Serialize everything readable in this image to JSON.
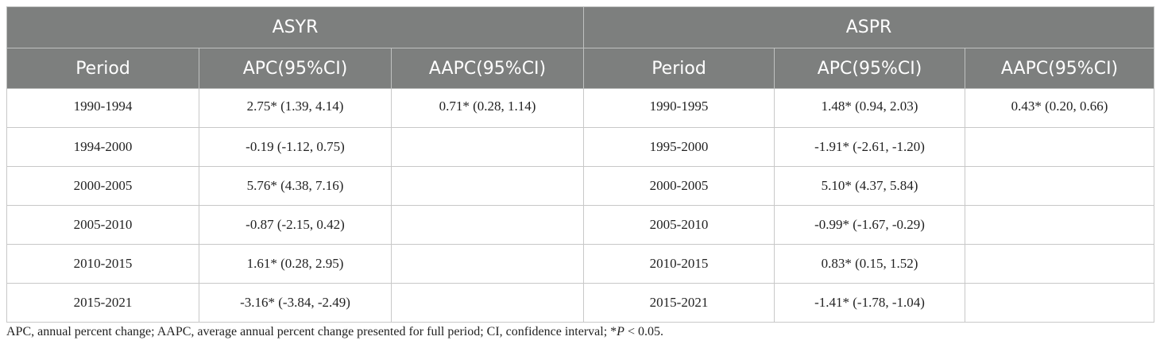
{
  "headers": {
    "group_left": "ASYR",
    "group_right": "ASPR",
    "period": "Period",
    "apc": "APC(95%CI)",
    "aapc": "AAPC(95%CI)"
  },
  "rows": [
    {
      "p1": "1990-1994",
      "apc1": "2.75* (1.39, 4.14)",
      "aapc1": "0.71* (0.28, 1.14)",
      "p2": "1990-1995",
      "apc2": "1.48* (0.94, 2.03)",
      "aapc2": "0.43* (0.20, 0.66)"
    },
    {
      "p1": "1994-2000",
      "apc1": "-0.19 (-1.12, 0.75)",
      "aapc1": "",
      "p2": "1995-2000",
      "apc2": "-1.91* (-2.61, -1.20)",
      "aapc2": ""
    },
    {
      "p1": "2000-2005",
      "apc1": "5.76* (4.38, 7.16)",
      "aapc1": "",
      "p2": "2000-2005",
      "apc2": "5.10* (4.37, 5.84)",
      "aapc2": ""
    },
    {
      "p1": "2005-2010",
      "apc1": "-0.87 (-2.15, 0.42)",
      "aapc1": "",
      "p2": "2005-2010",
      "apc2": "-0.99* (-1.67, -0.29)",
      "aapc2": ""
    },
    {
      "p1": "2010-2015",
      "apc1": "1.61* (0.28, 2.95)",
      "aapc1": "",
      "p2": "2010-2015",
      "apc2": "0.83* (0.15, 1.52)",
      "aapc2": ""
    },
    {
      "p1": "2015-2021",
      "apc1": "-3.16* (-3.84, -2.49)",
      "aapc1": "",
      "p2": "2015-2021",
      "apc2": "-1.41* (-1.78, -1.04)",
      "aapc2": ""
    }
  ],
  "footnote": {
    "text_before": "APC, annual percent change; AAPC, average annual percent change presented for full period; CI, confidence interval; *",
    "p_symbol": "P",
    "text_after": " < 0.05."
  }
}
